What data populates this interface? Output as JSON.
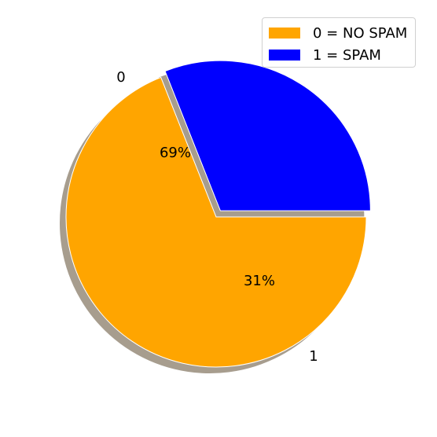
{
  "chart_data": {
    "type": "pie",
    "categories": [
      "0",
      "1"
    ],
    "values": [
      69,
      31
    ],
    "value_labels": [
      "69%",
      "31%"
    ],
    "colors": [
      "#FFA500",
      "#0000FF"
    ],
    "explode": [
      0,
      0.05
    ],
    "shadow": true,
    "start_angle_deg": 0,
    "legend": {
      "placement": "top-right",
      "entries": [
        "0 = NO SPAM",
        "1 = SPAM"
      ]
    }
  }
}
